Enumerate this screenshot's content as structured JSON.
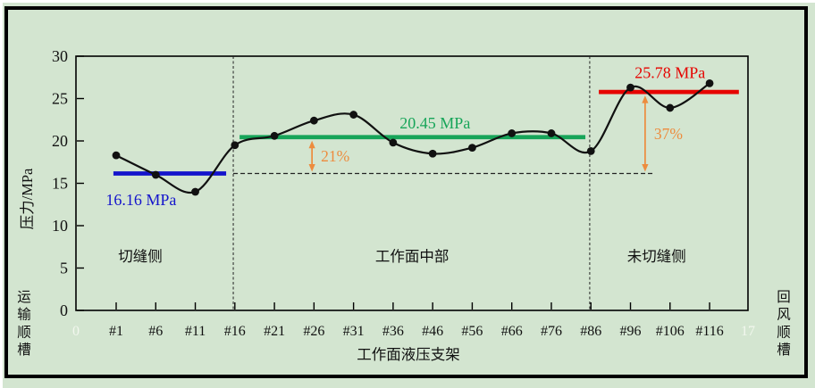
{
  "canvas": {
    "background": "#d3e5d0",
    "frame_color": "#000000"
  },
  "chart_data": {
    "type": "line",
    "title": "",
    "xlabel": "工作面液压支架",
    "ylabel": "压力/MPa",
    "side_label_left": "运输顺槽",
    "side_label_right": "回风顺槽",
    "ylim": [
      0,
      30
    ],
    "y_tick_labels": [
      "0",
      "5",
      "10",
      "15",
      "20",
      "25",
      "30"
    ],
    "categories": [
      "#1",
      "#6",
      "#11",
      "#16",
      "#21",
      "#26",
      "#31",
      "#36",
      "#46",
      "#56",
      "#66",
      "#76",
      "#86",
      "#96",
      "#106",
      "#116"
    ],
    "values": [
      18.3,
      16.0,
      14.0,
      19.5,
      20.6,
      22.4,
      23.1,
      19.8,
      18.5,
      19.2,
      20.9,
      20.9,
      18.8,
      26.3,
      23.9,
      26.8
    ],
    "line_color": "#111111",
    "marker_color": "#111111",
    "grid": false,
    "legend": "none",
    "edge_tick_labels": {
      "left": "0",
      "right": "17",
      "color": "#f2f7ee"
    },
    "region_divider_cats": [
      2.96,
      11.97
    ],
    "regions": [
      {
        "label": "切缝侧",
        "label_cat": 0.61
      },
      {
        "label": "工作面中部",
        "label_cat": 7.48
      },
      {
        "label": "未切缝侧",
        "label_cat": 13.66
      }
    ],
    "region_label_mpa": 5.8,
    "reference_lines": [
      {
        "label": "16.16 MPa",
        "value": 16.16,
        "color": "#1414cc",
        "from_cat": -0.07,
        "to_cat": 2.78,
        "label_cat": 0.63,
        "label_mpa": 12.4
      },
      {
        "label": "20.45 MPa",
        "value": 20.45,
        "color": "#17a559",
        "from_cat": 3.12,
        "to_cat": 11.86,
        "label_cat": 8.06,
        "label_mpa": 21.5
      },
      {
        "label": "25.78 MPa",
        "value": 25.78,
        "color": "#e60400",
        "from_cat": 12.2,
        "to_cat": 15.74,
        "label_cat": 14.0,
        "label_mpa": 27.4
      }
    ],
    "baseline_dashed": {
      "value": 16.16,
      "from_cat": 2.96,
      "to_cat": 13.62
    },
    "increase_arrows": [
      {
        "label": "21%",
        "at_cat": 4.95,
        "from_value": 20.45,
        "to_value": 16.16,
        "color": "#ed8c3e"
      },
      {
        "label": "37%",
        "at_cat": 13.37,
        "from_value": 25.78,
        "to_value": 16.16,
        "color": "#ed8c3e"
      }
    ]
  }
}
